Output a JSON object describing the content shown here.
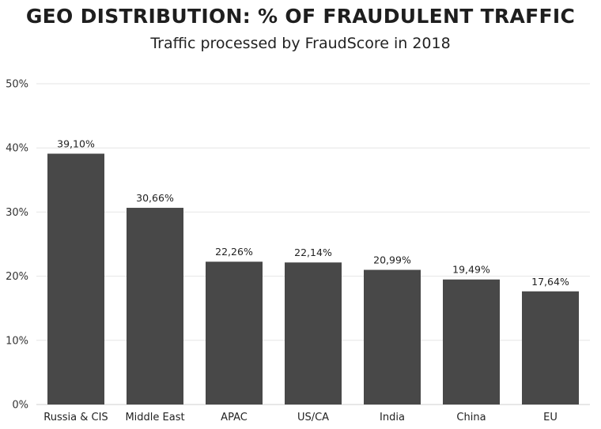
{
  "chart_data": {
    "type": "bar",
    "title": "GEO DISTRIBUTION: % OF FRAUDULENT TRAFFIC",
    "subtitle": "Traffic processed by FraudScore in 2018",
    "xlabel": "",
    "ylabel": "",
    "categories": [
      "Russia & CIS",
      "Middle East",
      "APAC",
      "US/CA",
      "India",
      "China",
      "EU"
    ],
    "values": [
      39.1,
      30.66,
      22.26,
      22.14,
      20.99,
      19.49,
      17.64
    ],
    "value_labels": [
      "39,10%",
      "30,66%",
      "22,26%",
      "22,14%",
      "20,99%",
      "19,49%",
      "17,64%"
    ],
    "ylim": [
      0,
      50
    ],
    "y_ticks": [
      0,
      10,
      20,
      30,
      40,
      50
    ],
    "y_tick_labels": [
      "0%",
      "10%",
      "20%",
      "30%",
      "40%",
      "50%"
    ],
    "grid": true,
    "bar_color": "#484848",
    "grid_color": "#e6e6e6"
  }
}
